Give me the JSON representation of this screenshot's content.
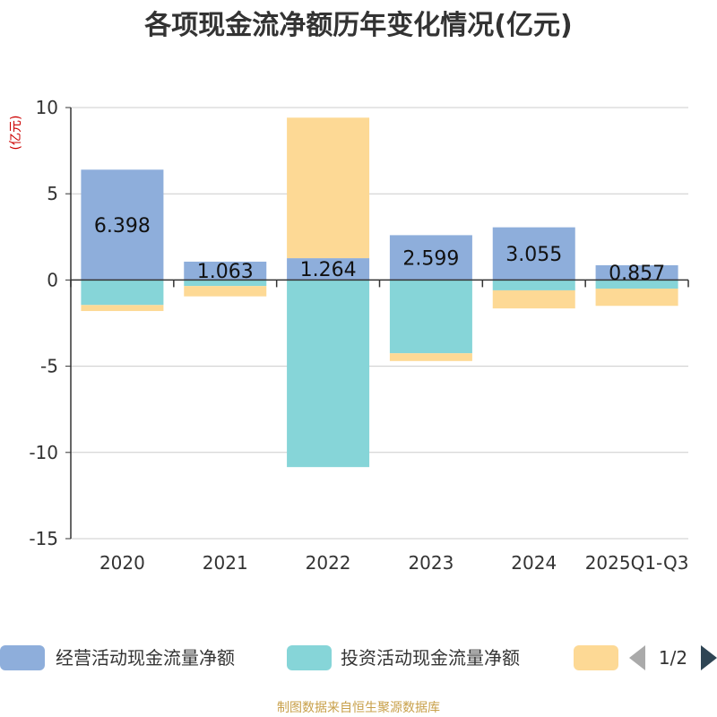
{
  "chart_data": {
    "type": "bar",
    "stacked": true,
    "title": "各项现金流净额历年变化情况(亿元)",
    "ylabel": "(亿元)",
    "ylim": [
      -15,
      10
    ],
    "yticks": [
      10,
      5,
      0,
      -5,
      -10,
      -15
    ],
    "grid": true,
    "categories": [
      "2020",
      "2021",
      "2022",
      "2023",
      "2024",
      "2025Q1-Q3"
    ],
    "series": [
      {
        "name": "经营活动现金流量净额",
        "color": "#8eaedb",
        "values": [
          6.398,
          1.063,
          1.264,
          2.599,
          3.055,
          0.857
        ]
      },
      {
        "name": "投资活动现金流量净额",
        "color": "#86d5d8",
        "values": [
          -1.45,
          -0.35,
          -10.85,
          -4.25,
          -0.6,
          -0.5
        ]
      },
      {
        "name": "",
        "color": "#fdd995",
        "values": [
          -0.35,
          -0.6,
          8.15,
          -0.45,
          -1.05,
          -1.0
        ]
      }
    ],
    "data_labels": [
      "6.398",
      "1.063",
      "1.264",
      "2.599",
      "3.055",
      "0.857"
    ],
    "legend_position": "bottom",
    "legend_pager": "1/2"
  },
  "source": "制图数据来自恒生聚源数据库",
  "colors": {
    "axis": "#333333",
    "grid": "#cccccc"
  }
}
